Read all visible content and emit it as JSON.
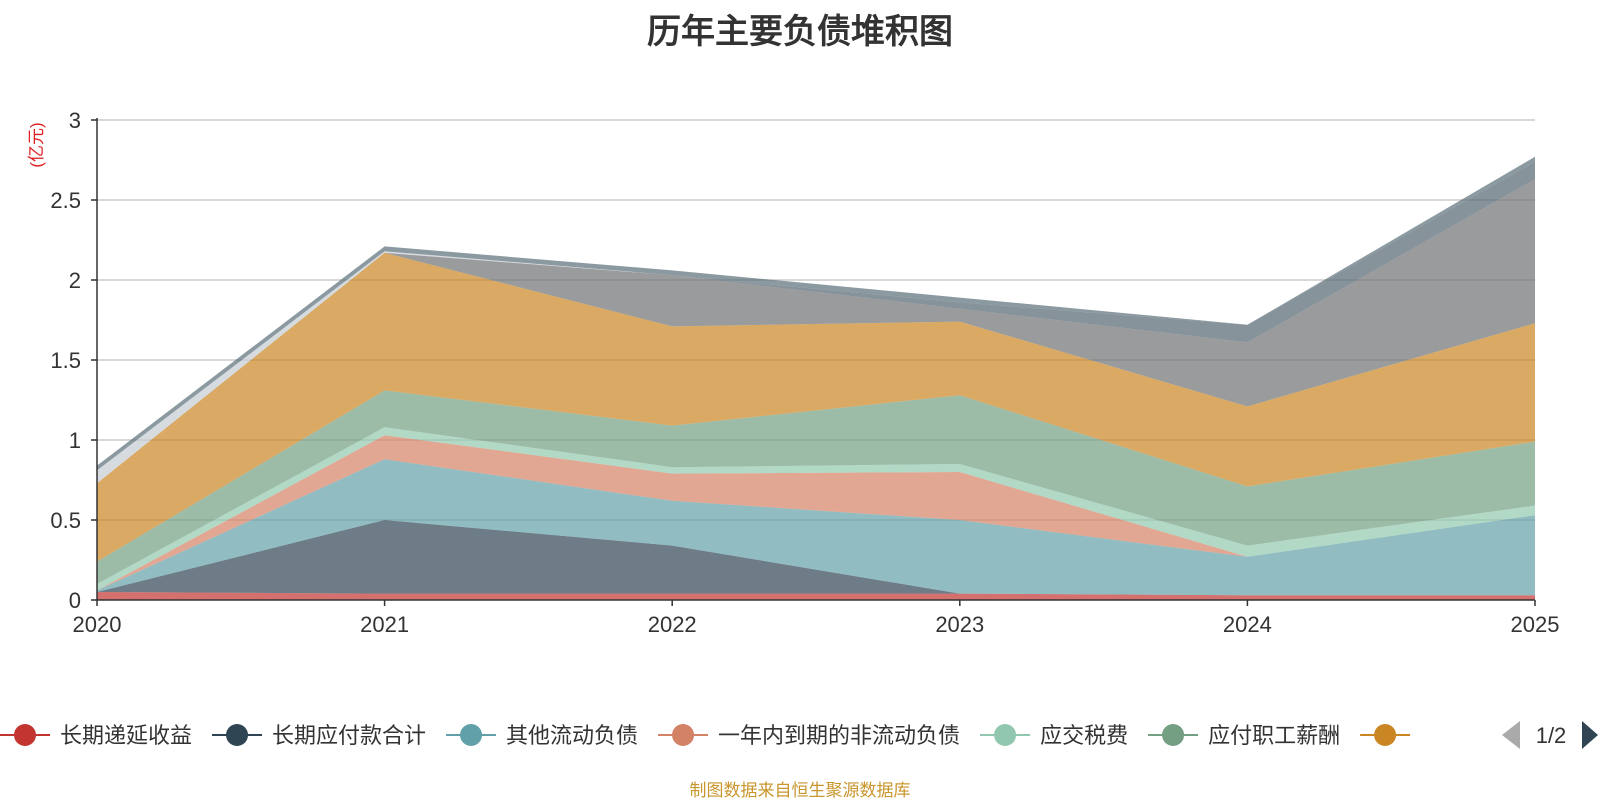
{
  "chart_data": {
    "type": "area",
    "stacked": true,
    "title": "历年主要负债堆积图",
    "ylabel": "(亿元)",
    "xlabel": "",
    "categories": [
      "2020",
      "2021",
      "2022",
      "2023",
      "2024",
      "2025"
    ],
    "ylim": [
      0,
      3
    ],
    "yticks": [
      "0",
      "0.5",
      "1",
      "1.5",
      "2",
      "2.5",
      "3"
    ],
    "grid": true,
    "legend_position": "bottom",
    "legend_page": "1/2",
    "series": [
      {
        "name": "长期递延收益",
        "color": "#c23531",
        "values": [
          0.05,
          0.04,
          0.04,
          0.04,
          0.03,
          0.03
        ]
      },
      {
        "name": "长期应付款合计",
        "color": "#2f4554",
        "values": [
          0.0,
          0.46,
          0.3,
          0.0,
          0.0,
          0.0
        ]
      },
      {
        "name": "其他流动负债",
        "color": "#61a0a8",
        "values": [
          0.01,
          0.38,
          0.28,
          0.46,
          0.24,
          0.5
        ]
      },
      {
        "name": "一年内到期的非流动负债",
        "color": "#d48265",
        "values": [
          0.0,
          0.15,
          0.17,
          0.3,
          0.0,
          0.0
        ]
      },
      {
        "name": "应交税费",
        "color": "#91c7ae",
        "values": [
          0.04,
          0.05,
          0.04,
          0.05,
          0.07,
          0.06
        ]
      },
      {
        "name": "应付职工薪酬",
        "color": "#749f83",
        "values": [
          0.14,
          0.23,
          0.26,
          0.43,
          0.37,
          0.4
        ]
      },
      {
        "name": "",
        "color": "#ca8622",
        "values": [
          0.49,
          0.86,
          0.62,
          0.46,
          0.5,
          0.74
        ]
      },
      {
        "name": "",
        "color": "#6e7074",
        "values": [
          0.0,
          0.0,
          0.32,
          0.08,
          0.4,
          0.9
        ]
      },
      {
        "name": "",
        "color": "#546570",
        "values": [
          0.0,
          0.0,
          0.0,
          0.04,
          0.11,
          0.11
        ]
      },
      {
        "name": "",
        "color": "#c4ccd3",
        "values": [
          0.08,
          0.01,
          0.0,
          0.0,
          0.0,
          0.0
        ]
      },
      {
        "name": "",
        "color": "#5a6e78",
        "values": [
          0.03,
          0.03,
          0.03,
          0.03,
          0.0,
          0.03
        ]
      }
    ]
  },
  "legend_visible_count": 7,
  "source_note": "制图数据来自恒生聚源数据库",
  "colors": {
    "axis": "#333333",
    "grid": "#cccccc",
    "unit": "#e02020",
    "pager_active": "#2f4554",
    "pager_inactive": "#aaaaaa"
  }
}
